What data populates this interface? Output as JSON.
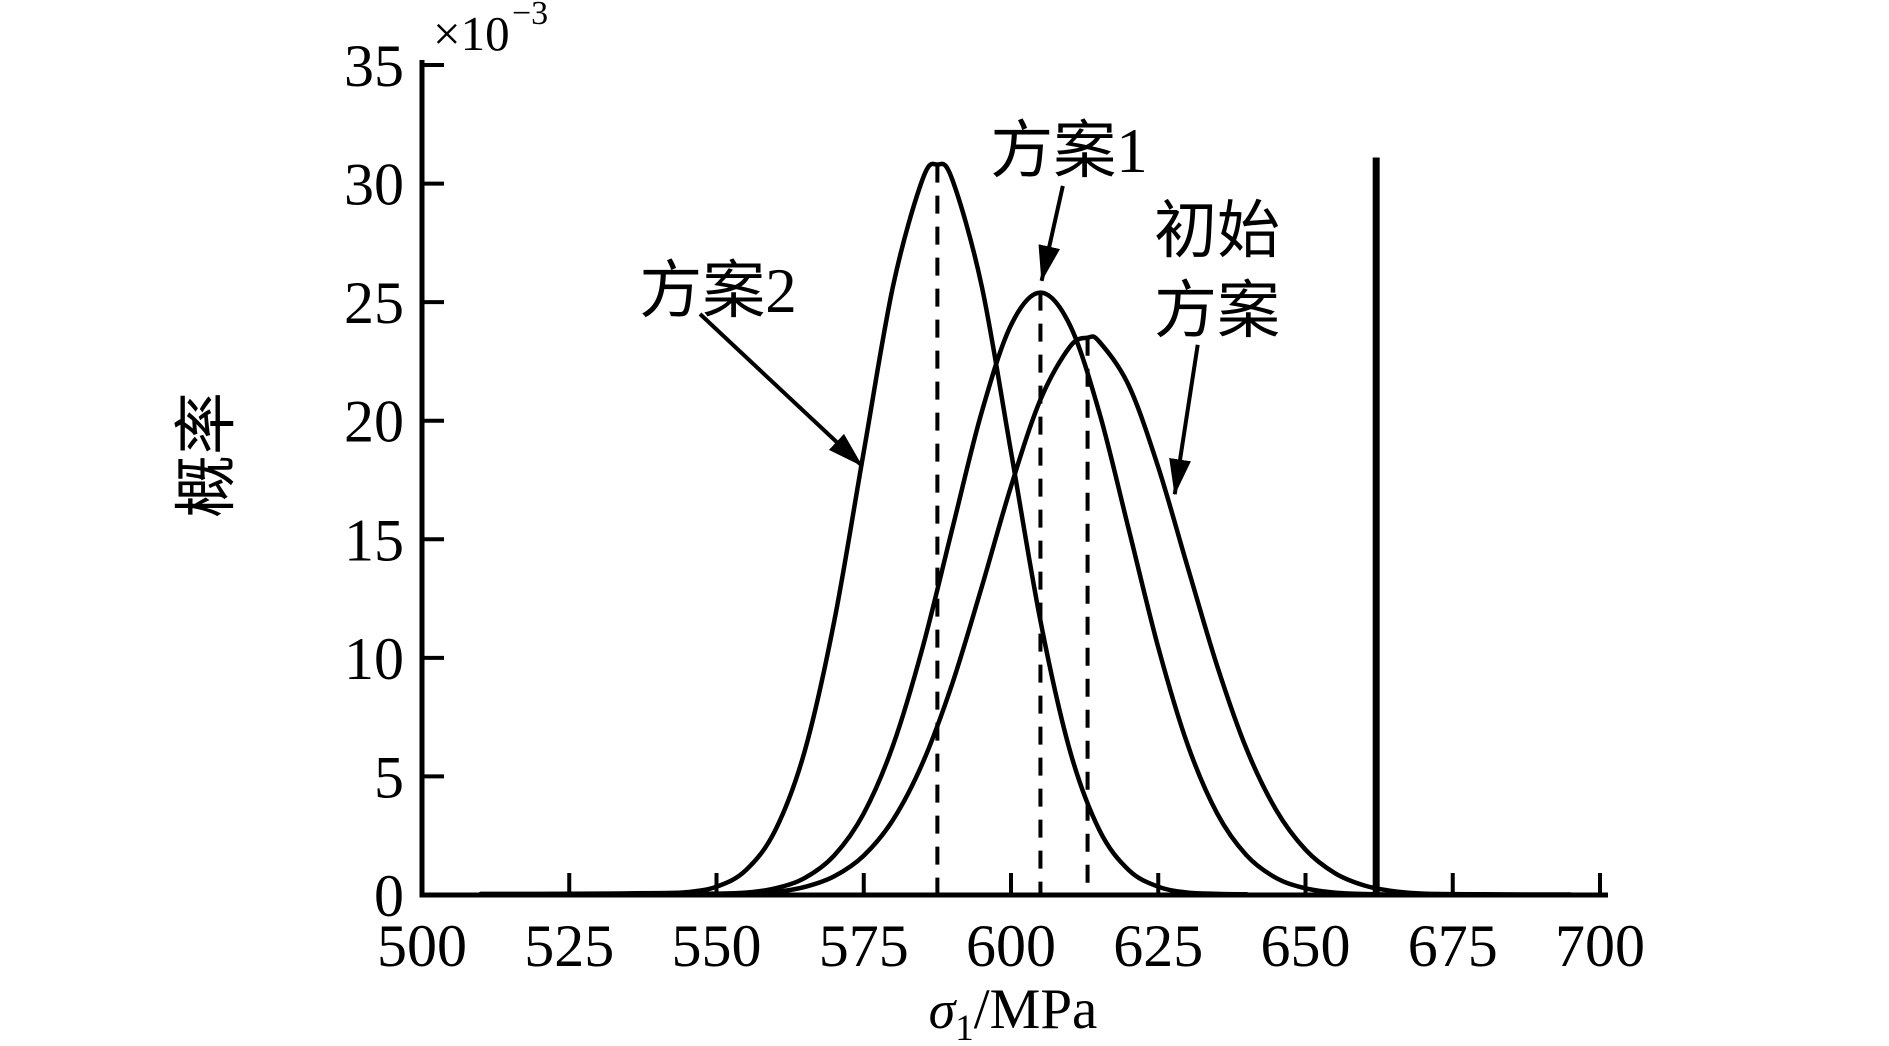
{
  "figure_title": "probability distribution comparison of first principal stress",
  "colors": {
    "ink": "#000000",
    "background": "#ffffff"
  },
  "chart_data": {
    "type": "line",
    "title": "",
    "xlabel_parts": {
      "sigma": "σ",
      "subscript": "1",
      "unit": "/MPa"
    },
    "ylabel": "概率",
    "y_scale_label": {
      "base": "×10",
      "exponent": "−3"
    },
    "xlim": [
      500,
      700
    ],
    "ylim_e3": [
      0,
      35
    ],
    "xticks": [
      "500",
      "525",
      "550",
      "575",
      "600",
      "625",
      "650",
      "675",
      "700"
    ],
    "yticks": [
      "0",
      "5",
      "10",
      "15",
      "20",
      "25",
      "30",
      "35"
    ],
    "grid": false,
    "legend_position": "none",
    "series": [
      {
        "id": "initial-scheme",
        "name": "初始方案",
        "peak": [
          613,
          23.5
        ],
        "has_peak_dashed_line": true,
        "points": [
          [
            530,
            0.02
          ],
          [
            540,
            0.03
          ],
          [
            550,
            0.05
          ],
          [
            555,
            0.08
          ],
          [
            560,
            0.13
          ],
          [
            565,
            0.34
          ],
          [
            570,
            0.79
          ],
          [
            575,
            1.66
          ],
          [
            580,
            3.18
          ],
          [
            585,
            5.57
          ],
          [
            590,
            8.89
          ],
          [
            595,
            12.96
          ],
          [
            600,
            17.23
          ],
          [
            605,
            20.89
          ],
          [
            610,
            23.12
          ],
          [
            613,
            23.5
          ],
          [
            615,
            23.33
          ],
          [
            620,
            21.48
          ],
          [
            625,
            18.04
          ],
          [
            630,
            13.82
          ],
          [
            635,
            9.66
          ],
          [
            640,
            6.15
          ],
          [
            645,
            3.59
          ],
          [
            650,
            1.91
          ],
          [
            655,
            0.92
          ],
          [
            660,
            0.4
          ],
          [
            665,
            0.16
          ],
          [
            670,
            0.06
          ],
          [
            680,
            0.03
          ],
          [
            690,
            0.02
          ],
          [
            695,
            0.02
          ]
        ]
      },
      {
        "id": "scheme-1",
        "name": "方案1",
        "peak": [
          605,
          25.4
        ],
        "has_peak_dashed_line": true,
        "points": [
          [
            520,
            0.03
          ],
          [
            530,
            0.03
          ],
          [
            540,
            0.04
          ],
          [
            550,
            0.06
          ],
          [
            555,
            0.1
          ],
          [
            560,
            0.28
          ],
          [
            565,
            0.72
          ],
          [
            570,
            1.67
          ],
          [
            575,
            3.44
          ],
          [
            580,
            6.33
          ],
          [
            585,
            10.44
          ],
          [
            590,
            15.41
          ],
          [
            595,
            20.34
          ],
          [
            600,
            24.03
          ],
          [
            605,
            25.4
          ],
          [
            610,
            24.03
          ],
          [
            615,
            20.34
          ],
          [
            620,
            15.41
          ],
          [
            625,
            10.44
          ],
          [
            630,
            6.33
          ],
          [
            635,
            3.44
          ],
          [
            640,
            1.67
          ],
          [
            645,
            0.72
          ],
          [
            650,
            0.28
          ],
          [
            655,
            0.1
          ],
          [
            660,
            0.04
          ],
          [
            665,
            0.02
          ]
        ]
      },
      {
        "id": "scheme-2",
        "name": "方案2",
        "peak": [
          587.5,
          30.8
        ],
        "has_peak_dashed_line": true,
        "points": [
          [
            510,
            0.05
          ],
          [
            520,
            0.05
          ],
          [
            530,
            0.06
          ],
          [
            540,
            0.08
          ],
          [
            545,
            0.12
          ],
          [
            550,
            0.35
          ],
          [
            555,
            1.05
          ],
          [
            560,
            2.74
          ],
          [
            565,
            6.09
          ],
          [
            570,
            11.56
          ],
          [
            575,
            18.69
          ],
          [
            580,
            25.71
          ],
          [
            585,
            30.19
          ],
          [
            587.5,
            30.8
          ],
          [
            590,
            30.19
          ],
          [
            595,
            25.71
          ],
          [
            600,
            18.69
          ],
          [
            605,
            11.56
          ],
          [
            610,
            6.09
          ],
          [
            615,
            2.74
          ],
          [
            620,
            1.05
          ],
          [
            625,
            0.35
          ],
          [
            630,
            0.1
          ],
          [
            635,
            0.05
          ],
          [
            640,
            0.03
          ]
        ]
      }
    ],
    "threshold_line": {
      "x": 662,
      "y_top_e3": 31.1,
      "style": "solid-vertical"
    },
    "annotations": [
      {
        "id": "scheme2-callout",
        "label": "方案2",
        "arrow_from": [
          547.2,
          24.5
        ],
        "arrow_to": [
          574.7,
          18.1
        ]
      },
      {
        "id": "scheme1-callout",
        "label": "方案1",
        "arrow_from": [
          608.8,
          29.9
        ],
        "arrow_to": [
          605.2,
          25.9
        ]
      },
      {
        "id": "initial-callout",
        "label_lines": [
          "初始",
          "方案"
        ],
        "arrow_from": [
          631.7,
          23.2
        ],
        "arrow_to": [
          627.8,
          16.9
        ]
      }
    ]
  }
}
